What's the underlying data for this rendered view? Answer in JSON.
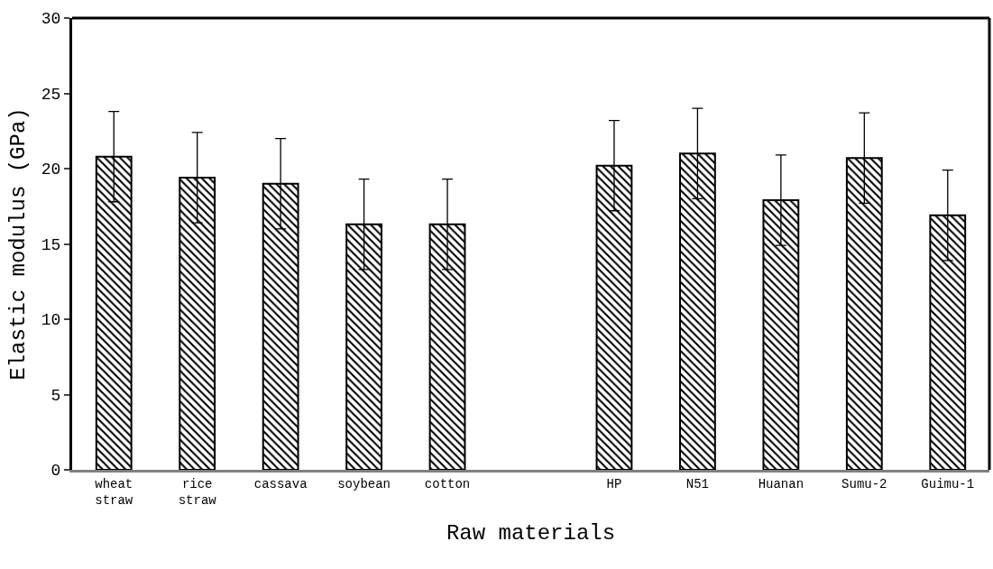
{
  "chart_data": {
    "type": "bar",
    "xlabel": "Raw materials",
    "ylabel": "Elastic modulus (GPa)",
    "categories": [
      "wheat straw",
      "rice straw",
      "cassava",
      "soybean",
      "cotton",
      null,
      "HP",
      "N51",
      "Huanan",
      "Sumu-2",
      "Guimu-1"
    ],
    "values": [
      20.8,
      19.4,
      19.0,
      16.3,
      16.3,
      null,
      20.2,
      21.0,
      17.9,
      20.7,
      16.9
    ],
    "errors": [
      3.0,
      3.0,
      3.0,
      3.0,
      3.0,
      null,
      3.0,
      3.0,
      3.0,
      3.0,
      3.0
    ],
    "color": "#000000",
    "ylim": [
      0,
      30
    ],
    "yticks": [
      0,
      5,
      10,
      15,
      20,
      25,
      30
    ],
    "grid": false,
    "legend": false
  }
}
